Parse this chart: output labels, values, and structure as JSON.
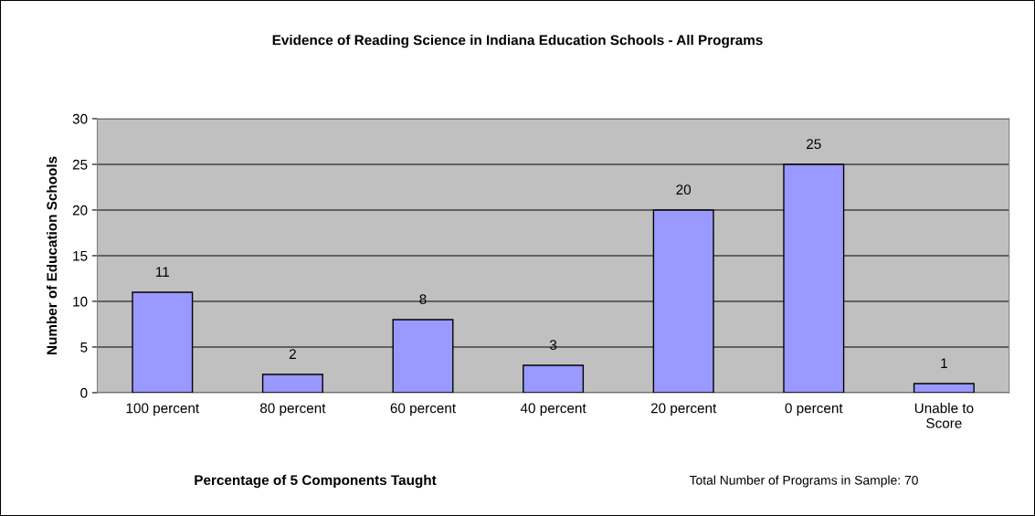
{
  "chart_data": {
    "type": "bar",
    "title": "Evidence of Reading Science in Indiana Education Schools - All Programs",
    "xlabel": "Percentage of 5 Components Taught",
    "ylabel": "Number of Education Schools",
    "categories": [
      "100 percent",
      "80 percent",
      "60 percent",
      "40 percent",
      "20 percent",
      "0 percent",
      "Unable to\nScore"
    ],
    "values": [
      11,
      2,
      8,
      3,
      20,
      25,
      1
    ],
    "color": "#9999ff",
    "ylim": [
      0,
      30
    ],
    "yticks": [
      0,
      5,
      10,
      15,
      20,
      25,
      30
    ],
    "grid": "y",
    "data_labels": true,
    "annotations": [
      "Total Number of Programs in Sample: 70"
    ]
  }
}
